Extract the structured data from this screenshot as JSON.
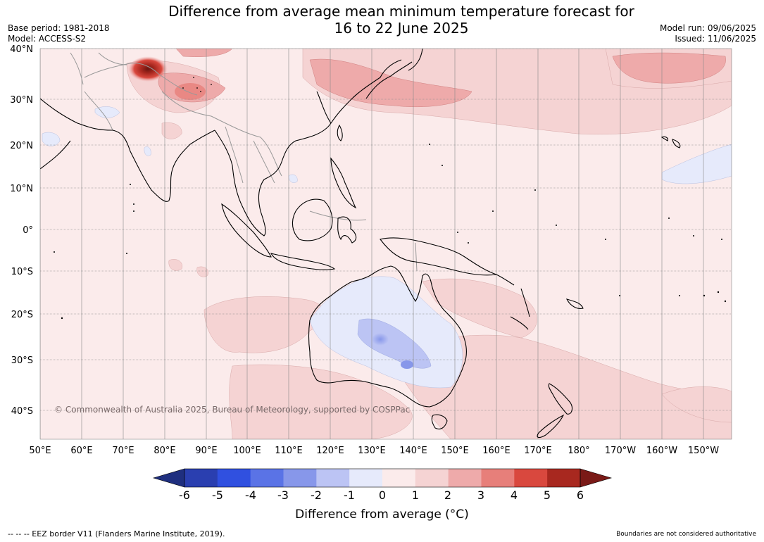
{
  "header": {
    "title_line1": "Difference from average mean minimum temperature forecast for",
    "title_line2": "16 to 22 June 2025",
    "base_period": "Base period: 1981-2018",
    "model": "Model: ACCESS-S2",
    "model_run": "Model run: 09/06/2025",
    "issued": "Issued: 11/06/2025"
  },
  "map": {
    "copyright": "© Commonwealth of Australia 2025, Bureau of Meteorology, supported by COSPPac",
    "lat_labels": [
      "40°N",
      "30°N",
      "20°N",
      "10°N",
      "0°",
      "10°S",
      "20°S",
      "30°S",
      "40°S"
    ],
    "lon_labels": [
      "50°E",
      "60°E",
      "70°E",
      "80°E",
      "90°E",
      "100°E",
      "110°E",
      "120°E",
      "130°E",
      "140°E",
      "150°E",
      "160°E",
      "170°E",
      "180°",
      "170°W",
      "160°W",
      "150°W"
    ],
    "land_color": "#fbebeb",
    "land_outline_color": "#000000"
  },
  "colorbar": {
    "ticks": [
      "-6",
      "-5",
      "-4",
      "-3",
      "-2",
      "-1",
      "0",
      "1",
      "2",
      "3",
      "4",
      "5",
      "6"
    ],
    "colors": [
      "#1f2f7f",
      "#2a3fb0",
      "#3050e0",
      "#5a73e6",
      "#8797ea",
      "#bcc4f4",
      "#e6eafb",
      "#fbebeb",
      "#f5d3d3",
      "#eeaaaa",
      "#e77f7a",
      "#d9483e",
      "#a8281f",
      "#7a1a17"
    ],
    "label": "Difference from average (°C)"
  },
  "footer": {
    "eez_legend": "--  --  -- EEZ border V11 (Flanders Marine Institute, 2019).",
    "disclaimer": "Boundaries are not considered authoritative"
  }
}
